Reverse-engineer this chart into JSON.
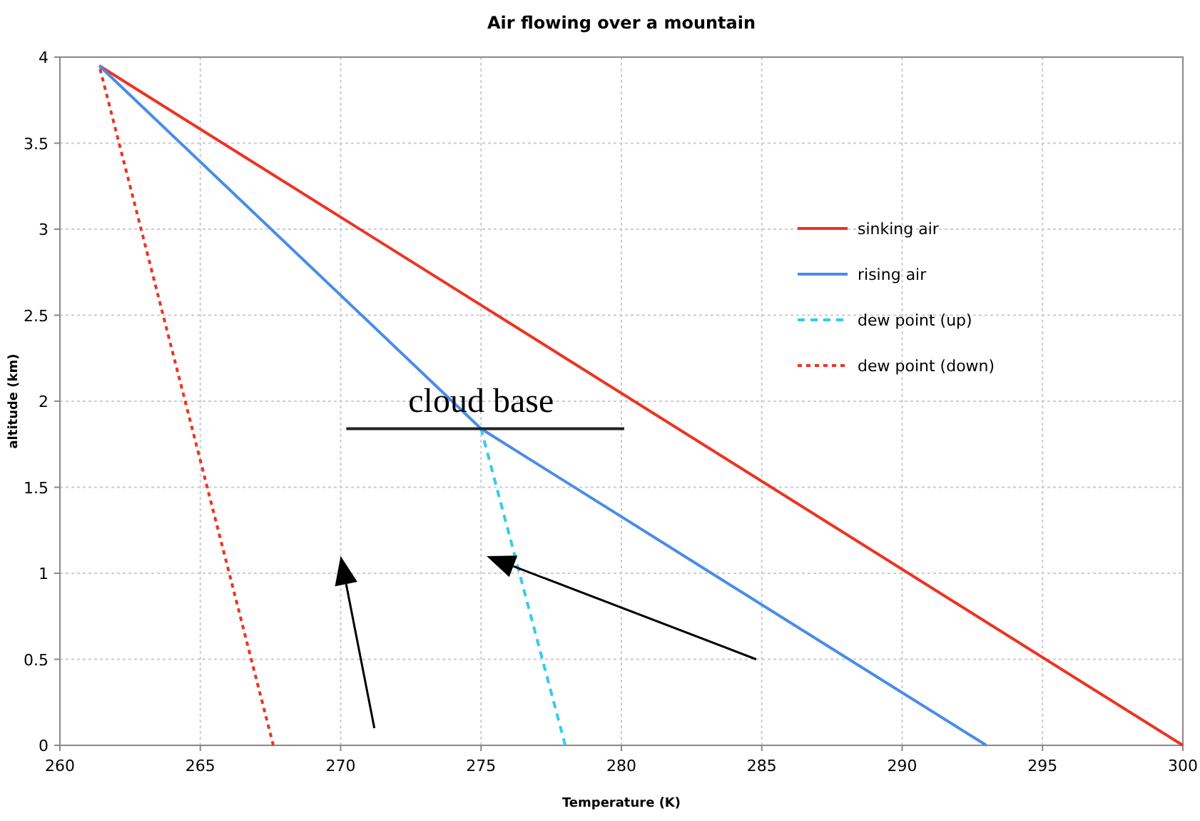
{
  "chart_data": {
    "type": "line",
    "title": "Air flowing over a mountain",
    "xlabel": "Temperature (K)",
    "ylabel": "altitude (km)",
    "xlim": [
      260,
      300
    ],
    "xticks": [
      260,
      265,
      270,
      275,
      280,
      285,
      290,
      295,
      300
    ],
    "ylim": [
      0,
      4
    ],
    "yticks": [
      0,
      0.5,
      1,
      1.5,
      2,
      2.5,
      3,
      3.5,
      4
    ],
    "grid": true,
    "legend": "right",
    "marker": "none",
    "series": [
      {
        "name": "sinking air",
        "color": "#ee3322",
        "line_style": "solid",
        "x": [
          261.4,
          300
        ],
        "values": [
          3.95,
          0
        ]
      },
      {
        "name": "rising air",
        "color": "#4a8ce8",
        "line_style": "solid",
        "x": [
          293,
          275,
          261.4
        ],
        "values": [
          0,
          1.84,
          3.95
        ]
      },
      {
        "name": "dew point (up)",
        "color": "#33ccee",
        "line_style": "dashed",
        "x": [
          278,
          275
        ],
        "values": [
          0,
          1.84
        ]
      },
      {
        "name": "dew point (down)",
        "color": "#ee3322",
        "line_style": "dotted",
        "x": [
          267.6,
          261.4
        ],
        "values": [
          0,
          3.95
        ]
      },
      {
        "color": "#222222",
        "line_style": "solid",
        "x": [
          270.2,
          280.1
        ],
        "values": [
          1.84,
          1.84
        ]
      }
    ],
    "annotations": [
      {
        "text": "cloud base",
        "x": 275,
        "y": 1.84
      }
    ]
  }
}
